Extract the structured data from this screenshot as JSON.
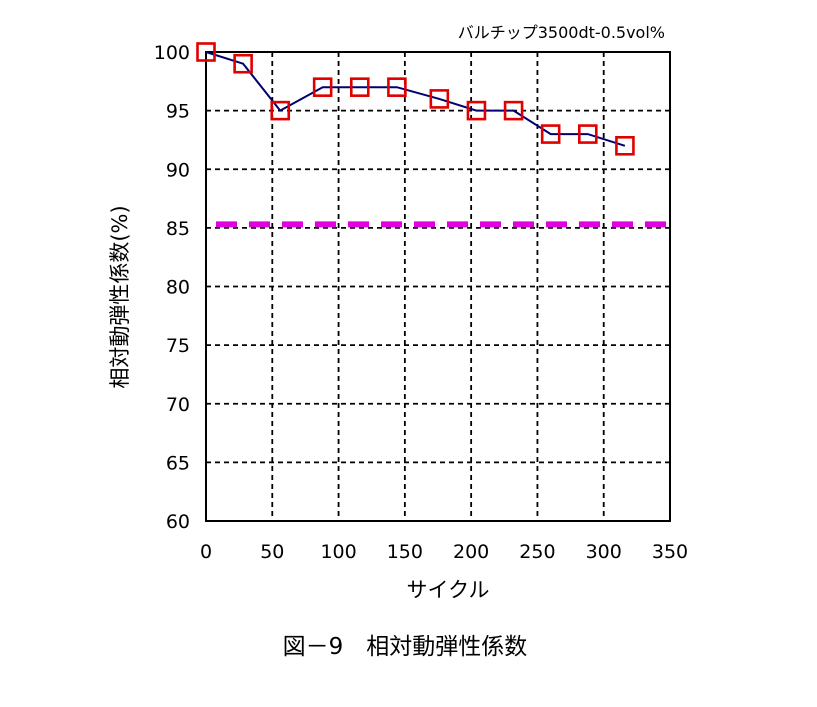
{
  "chart_data": {
    "type": "line",
    "annotation": "バルチップ3500dt-0.5vol%",
    "xlabel": "サイクル",
    "ylabel": "相対動弾性係数(%)",
    "caption": "図－9　相対動弾性係数",
    "xlim": [
      0,
      350
    ],
    "ylim": [
      60,
      100
    ],
    "x_ticks": [
      0,
      50,
      100,
      150,
      200,
      250,
      300,
      350
    ],
    "y_ticks": [
      60,
      65,
      70,
      75,
      80,
      85,
      90,
      95,
      100
    ],
    "grid": true,
    "series": [
      {
        "x": [
          0,
          28,
          56,
          88,
          116,
          144,
          176,
          204,
          232,
          260,
          288,
          316
        ],
        "y": [
          100,
          99,
          95,
          97,
          97,
          97,
          96,
          95,
          95,
          93,
          93,
          92
        ],
        "color": "#00006e",
        "marker": "square",
        "marker_color": "#e00000"
      }
    ],
    "reference_line": {
      "y": 85.3,
      "color": "#e000e0",
      "style": "dashed"
    }
  }
}
